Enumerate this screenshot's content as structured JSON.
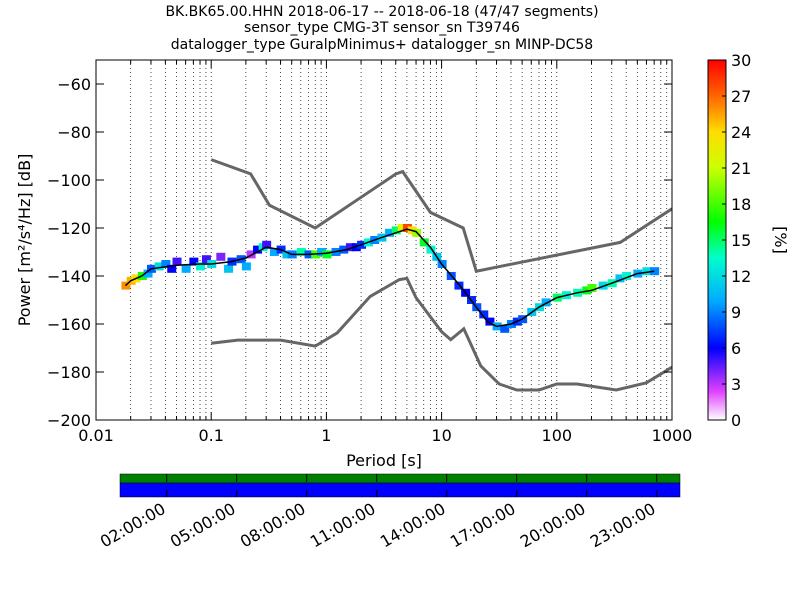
{
  "chart_data": [
    {
      "type": "heatmap",
      "title_lines": [
        "BK.BK65.00.HHN   2018-06-17 -- 2018-06-18  (47/47 segments)",
        "sensor_type CMG-3T sensor_sn T39746",
        "datalogger_type GuralpMinimus+ datalogger_sn MINP-DC58"
      ],
      "xlabel": "Period [s]",
      "ylabel": "Power [m²/s⁴/Hz] [dB]",
      "x_scale": "log",
      "xlim": [
        0.01,
        1000
      ],
      "ylim": [
        -200,
        -50
      ],
      "x_ticks": [
        {
          "value": 0.01,
          "label": "0.01"
        },
        {
          "value": 0.1,
          "label": "0.1"
        },
        {
          "value": 1,
          "label": "1"
        },
        {
          "value": 10,
          "label": "10"
        },
        {
          "value": 100,
          "label": "100"
        },
        {
          "value": 1000,
          "label": "1000"
        }
      ],
      "y_ticks": [
        {
          "value": -60,
          "label": "−60"
        },
        {
          "value": -80,
          "label": "−80"
        },
        {
          "value": -100,
          "label": "−100"
        },
        {
          "value": -120,
          "label": "−120"
        },
        {
          "value": -140,
          "label": "−140"
        },
        {
          "value": -160,
          "label": "−160"
        },
        {
          "value": -180,
          "label": "−180"
        },
        {
          "value": -200,
          "label": "−200"
        }
      ],
      "grid": "dotted vertical at log minor periods",
      "colorbar": {
        "label": "[%]",
        "range": [
          0,
          30
        ],
        "ticks": [
          {
            "value": 0,
            "label": "0"
          },
          {
            "value": 3,
            "label": "3"
          },
          {
            "value": 6,
            "label": "6"
          },
          {
            "value": 9,
            "label": "9"
          },
          {
            "value": 12,
            "label": "12"
          },
          {
            "value": 15,
            "label": "15"
          },
          {
            "value": 18,
            "label": "18"
          },
          {
            "value": 21,
            "label": "21"
          },
          {
            "value": 24,
            "label": "24"
          },
          {
            "value": 27,
            "label": "27"
          },
          {
            "value": 30,
            "label": "30"
          }
        ]
      },
      "noise_models": [
        {
          "points": [
            [
              0.1,
              -91.5
            ],
            [
              0.22,
              -97.4
            ],
            [
              0.32,
              -110.5
            ],
            [
              0.8,
              -120
            ],
            [
              4,
              -97.5
            ],
            [
              4.6,
              -96.5
            ],
            [
              8,
              -113.5
            ],
            [
              15.4,
              -120
            ],
            [
              20,
              -138
            ],
            [
              354.8,
              -126
            ],
            [
              1000,
              -112
            ]
          ]
        },
        {
          "points": [
            [
              0.1,
              -168
            ],
            [
              0.17,
              -166.7
            ],
            [
              0.4,
              -166.7
            ],
            [
              0.8,
              -169.2
            ],
            [
              1.24,
              -163.7
            ],
            [
              2.4,
              -148.5
            ],
            [
              4.3,
              -141.5
            ],
            [
              5,
              -141
            ],
            [
              6,
              -149
            ],
            [
              10,
              -163.2
            ],
            [
              12,
              -166.5
            ],
            [
              15.6,
              -162
            ],
            [
              21.9,
              -177.5
            ],
            [
              31.6,
              -185
            ],
            [
              45,
              -187.5
            ],
            [
              70,
              -187.5
            ],
            [
              100,
              -185
            ],
            [
              150,
              -185
            ],
            [
              328,
              -187.5
            ],
            [
              600,
              -184.5
            ],
            [
              1000,
              -178
            ]
          ]
        }
      ],
      "median_curve": [
        [
          0.018,
          -144
        ],
        [
          0.02,
          -142
        ],
        [
          0.025,
          -140
        ],
        [
          0.03,
          -137
        ],
        [
          0.05,
          -135.5
        ],
        [
          0.08,
          -135
        ],
        [
          0.1,
          -135
        ],
        [
          0.15,
          -134
        ],
        [
          0.2,
          -132.5
        ],
        [
          0.3,
          -128
        ],
        [
          0.4,
          -129
        ],
        [
          0.5,
          -131
        ],
        [
          0.7,
          -131
        ],
        [
          1,
          -130.5
        ],
        [
          1.5,
          -129
        ],
        [
          2,
          -127
        ],
        [
          3,
          -124
        ],
        [
          4,
          -122
        ],
        [
          5,
          -120.5
        ],
        [
          6,
          -121.5
        ],
        [
          8,
          -128
        ],
        [
          10,
          -135
        ],
        [
          15,
          -145
        ],
        [
          20,
          -153
        ],
        [
          25,
          -159
        ],
        [
          30,
          -161
        ],
        [
          40,
          -160
        ],
        [
          50,
          -158
        ],
        [
          70,
          -153
        ],
        [
          100,
          -149
        ],
        [
          150,
          -147
        ],
        [
          200,
          -146
        ],
        [
          300,
          -143
        ],
        [
          500,
          -139
        ],
        [
          700,
          -138
        ]
      ],
      "density_cells": [
        [
          0.018,
          -144,
          26
        ],
        [
          0.02,
          -142,
          25
        ],
        [
          0.022,
          -141,
          24
        ],
        [
          0.025,
          -140,
          17
        ],
        [
          0.028,
          -139,
          10
        ],
        [
          0.03,
          -137,
          8
        ],
        [
          0.035,
          -136,
          12
        ],
        [
          0.04,
          -135,
          9
        ],
        [
          0.045,
          -137,
          6
        ],
        [
          0.05,
          -134,
          5
        ],
        [
          0.06,
          -137,
          10
        ],
        [
          0.07,
          -134,
          6
        ],
        [
          0.08,
          -136,
          13
        ],
        [
          0.09,
          -133,
          5
        ],
        [
          0.1,
          -135,
          12
        ],
        [
          0.12,
          -132,
          4
        ],
        [
          0.14,
          -137,
          11
        ],
        [
          0.15,
          -134,
          7
        ],
        [
          0.18,
          -133,
          8
        ],
        [
          0.2,
          -136,
          10
        ],
        [
          0.22,
          -131,
          3
        ],
        [
          0.25,
          -129,
          6
        ],
        [
          0.28,
          -128,
          13
        ],
        [
          0.3,
          -127,
          5
        ],
        [
          0.35,
          -130,
          10
        ],
        [
          0.4,
          -129,
          7
        ],
        [
          0.45,
          -131,
          11
        ],
        [
          0.5,
          -131,
          9
        ],
        [
          0.6,
          -130,
          14
        ],
        [
          0.7,
          -131,
          8
        ],
        [
          0.8,
          -131,
          18
        ],
        [
          0.9,
          -130,
          10
        ],
        [
          1,
          -131,
          16
        ],
        [
          1.2,
          -130,
          9
        ],
        [
          1.4,
          -129,
          8
        ],
        [
          1.6,
          -128,
          5
        ],
        [
          1.8,
          -128,
          6
        ],
        [
          2,
          -127,
          7
        ],
        [
          2.3,
          -126,
          13
        ],
        [
          2.6,
          -125,
          9
        ],
        [
          3,
          -124,
          11
        ],
        [
          3.5,
          -122,
          10
        ],
        [
          4,
          -121,
          15
        ],
        [
          4.5,
          -120,
          22
        ],
        [
          5,
          -120,
          28
        ],
        [
          5.5,
          -121,
          24
        ],
        [
          6,
          -122,
          20
        ],
        [
          7,
          -126,
          16
        ],
        [
          8,
          -129,
          13
        ],
        [
          9,
          -132,
          11
        ],
        [
          10,
          -135,
          9
        ],
        [
          12,
          -140,
          8
        ],
        [
          14,
          -144,
          7
        ],
        [
          16,
          -147,
          6
        ],
        [
          18,
          -150,
          7
        ],
        [
          20,
          -153,
          8
        ],
        [
          23,
          -156,
          7
        ],
        [
          26,
          -159,
          6
        ],
        [
          30,
          -161,
          10
        ],
        [
          35,
          -162,
          8
        ],
        [
          40,
          -160,
          9
        ],
        [
          45,
          -159,
          7
        ],
        [
          50,
          -158,
          8
        ],
        [
          60,
          -155,
          11
        ],
        [
          70,
          -153,
          12
        ],
        [
          80,
          -151,
          10
        ],
        [
          100,
          -149,
          15
        ],
        [
          120,
          -148,
          13
        ],
        [
          150,
          -147,
          14
        ],
        [
          180,
          -146,
          16
        ],
        [
          200,
          -145,
          18
        ],
        [
          250,
          -144,
          12
        ],
        [
          300,
          -143,
          14
        ],
        [
          350,
          -141,
          11
        ],
        [
          400,
          -140,
          13
        ],
        [
          500,
          -139,
          10
        ],
        [
          600,
          -138,
          12
        ],
        [
          700,
          -138,
          9
        ]
      ],
      "time_axis": {
        "ticks": [
          {
            "label": "02:00:00",
            "hour": 2
          },
          {
            "label": "05:00:00",
            "hour": 5
          },
          {
            "label": "08:00:00",
            "hour": 8
          },
          {
            "label": "11:00:00",
            "hour": 11
          },
          {
            "label": "14:00:00",
            "hour": 14
          },
          {
            "label": "17:00:00",
            "hour": 17
          },
          {
            "label": "20:00:00",
            "hour": 20
          },
          {
            "label": "23:00:00",
            "hour": 23
          }
        ],
        "coverage_colors": {
          "available": "#008000",
          "used": "#0000ff"
        }
      },
      "colors": {
        "noise_model": "#666666",
        "median": "#000000",
        "grid": "#000000"
      }
    }
  ]
}
